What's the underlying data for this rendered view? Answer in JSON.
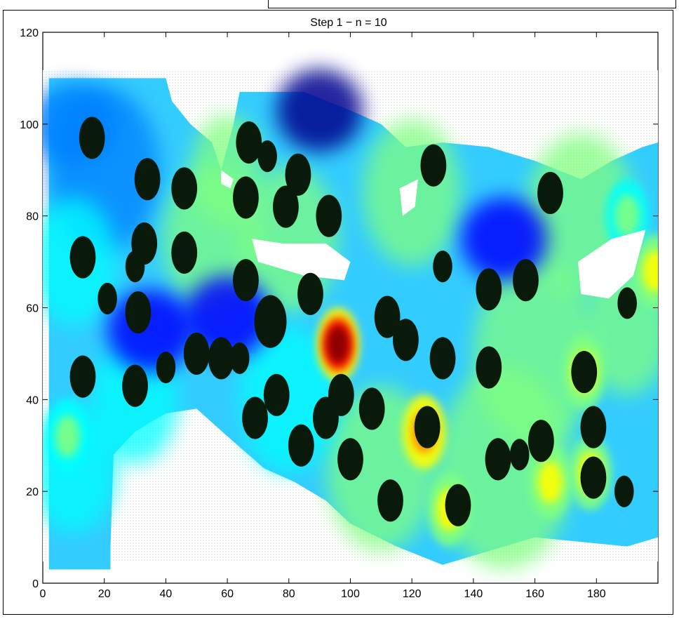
{
  "chart_data": {
    "type": "heatmap",
    "title": "Step 1 − n = 10",
    "xlabel": "",
    "ylabel": "",
    "xlim": [
      0,
      200
    ],
    "ylim": [
      0,
      120
    ],
    "xticks": [
      "0",
      "20",
      "40",
      "60",
      "80",
      "100",
      "120",
      "140",
      "160",
      "180"
    ],
    "yticks": [
      "0",
      "20",
      "40",
      "60",
      "80",
      "100",
      "120"
    ],
    "grid": false,
    "colormap": [
      "#00008f",
      "#0000ff",
      "#0080ff",
      "#00ffff",
      "#80ff80",
      "#ffff00",
      "#ff8000",
      "#ff0000",
      "#800000"
    ],
    "background_color": "#0066ff",
    "hotspots": [
      {
        "x": 96,
        "y": 52,
        "level": 1.0
      },
      {
        "x": 124,
        "y": 33,
        "level": 0.72
      },
      {
        "x": 178,
        "y": 24,
        "level": 0.68
      },
      {
        "x": 165,
        "y": 22,
        "level": 0.6
      },
      {
        "x": 176,
        "y": 46,
        "level": 0.6
      },
      {
        "x": 132,
        "y": 16,
        "level": 0.6
      },
      {
        "x": 8,
        "y": 32,
        "level": 0.55
      },
      {
        "x": 190,
        "y": 80,
        "level": 0.55
      },
      {
        "x": 199,
        "y": 68,
        "level": 0.62
      }
    ],
    "coldspots": [
      {
        "x": 90,
        "y": 103,
        "level": 0.05
      },
      {
        "x": 150,
        "y": 75,
        "level": 0.1
      },
      {
        "x": 35,
        "y": 55,
        "level": 0.15
      },
      {
        "x": 60,
        "y": 58,
        "level": 0.15
      },
      {
        "x": 10,
        "y": 100,
        "level": 0.2
      }
    ],
    "black_blobs": [
      {
        "x": 16,
        "y": 97,
        "r": 4
      },
      {
        "x": 34,
        "y": 88,
        "r": 4
      },
      {
        "x": 46,
        "y": 86,
        "r": 4
      },
      {
        "x": 13,
        "y": 71,
        "r": 4
      },
      {
        "x": 33,
        "y": 74,
        "r": 4
      },
      {
        "x": 46,
        "y": 72,
        "r": 4
      },
      {
        "x": 30,
        "y": 69,
        "r": 3
      },
      {
        "x": 21,
        "y": 62,
        "r": 3
      },
      {
        "x": 31,
        "y": 59,
        "r": 4
      },
      {
        "x": 13,
        "y": 45,
        "r": 4
      },
      {
        "x": 30,
        "y": 43,
        "r": 4
      },
      {
        "x": 40,
        "y": 47,
        "r": 3
      },
      {
        "x": 50,
        "y": 50,
        "r": 4
      },
      {
        "x": 58,
        "y": 49,
        "r": 4
      },
      {
        "x": 64,
        "y": 49,
        "r": 3
      },
      {
        "x": 67,
        "y": 96,
        "r": 4
      },
      {
        "x": 73,
        "y": 93,
        "r": 3
      },
      {
        "x": 66,
        "y": 84,
        "r": 4
      },
      {
        "x": 83,
        "y": 89,
        "r": 4
      },
      {
        "x": 79,
        "y": 82,
        "r": 4
      },
      {
        "x": 93,
        "y": 80,
        "r": 4
      },
      {
        "x": 66,
        "y": 66,
        "r": 4
      },
      {
        "x": 74,
        "y": 57,
        "r": 5
      },
      {
        "x": 87,
        "y": 63,
        "r": 4
      },
      {
        "x": 76,
        "y": 41,
        "r": 4
      },
      {
        "x": 69,
        "y": 36,
        "r": 4
      },
      {
        "x": 84,
        "y": 30,
        "r": 4
      },
      {
        "x": 92,
        "y": 36,
        "r": 4
      },
      {
        "x": 97,
        "y": 41,
        "r": 4
      },
      {
        "x": 100,
        "y": 27,
        "r": 4
      },
      {
        "x": 107,
        "y": 38,
        "r": 4
      },
      {
        "x": 112,
        "y": 58,
        "r": 4
      },
      {
        "x": 118,
        "y": 53,
        "r": 4
      },
      {
        "x": 113,
        "y": 18,
        "r": 4
      },
      {
        "x": 127,
        "y": 91,
        "r": 4
      },
      {
        "x": 130,
        "y": 69,
        "r": 3
      },
      {
        "x": 125,
        "y": 34,
        "r": 4
      },
      {
        "x": 130,
        "y": 49,
        "r": 4
      },
      {
        "x": 145,
        "y": 64,
        "r": 4
      },
      {
        "x": 157,
        "y": 66,
        "r": 4
      },
      {
        "x": 145,
        "y": 47,
        "r": 4
      },
      {
        "x": 148,
        "y": 27,
        "r": 4
      },
      {
        "x": 155,
        "y": 28,
        "r": 3
      },
      {
        "x": 162,
        "y": 31,
        "r": 4
      },
      {
        "x": 135,
        "y": 17,
        "r": 4
      },
      {
        "x": 165,
        "y": 85,
        "r": 4
      },
      {
        "x": 176,
        "y": 46,
        "r": 4
      },
      {
        "x": 179,
        "y": 34,
        "r": 4
      },
      {
        "x": 179,
        "y": 23,
        "r": 4
      },
      {
        "x": 189,
        "y": 20,
        "r": 3
      },
      {
        "x": 190,
        "y": 61,
        "r": 3
      }
    ]
  }
}
